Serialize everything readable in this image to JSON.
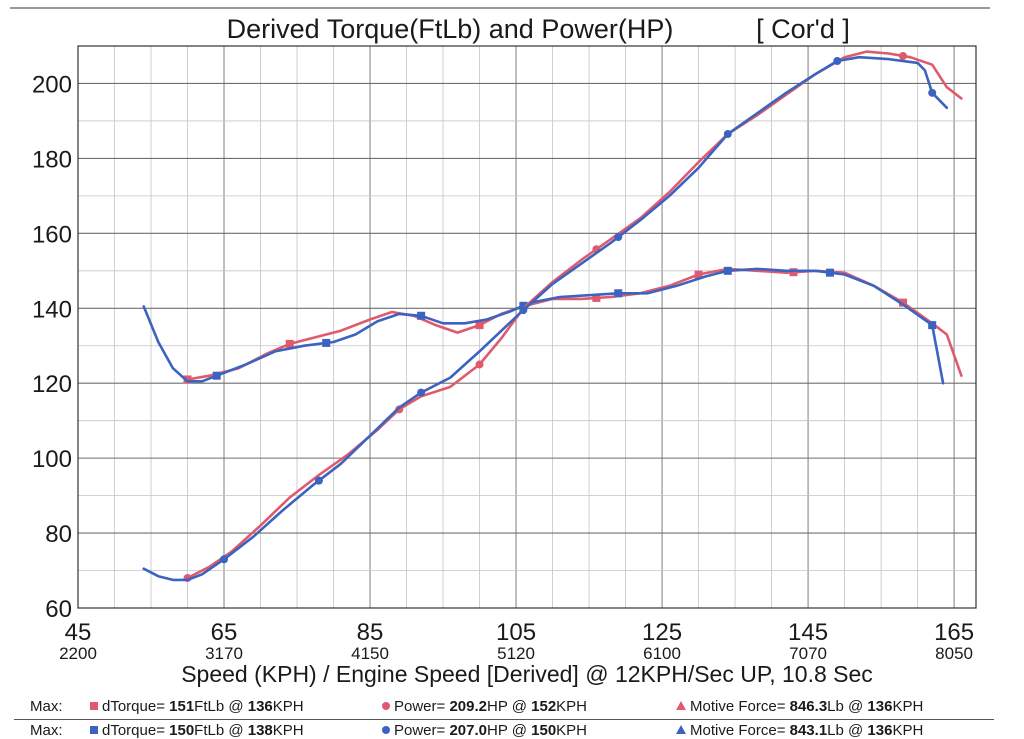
{
  "chart_data": {
    "type": "line",
    "title": "Derived Torque(FtLb) and Power(HP)",
    "title_tag": "[ Cor'd ]",
    "xlabel": "Speed (KPH) / Engine Speed [Derived] @ 12KPH/Sec UP, 10.8 Sec",
    "ylabel": "",
    "xlim": [
      45,
      168
    ],
    "ylim": [
      60,
      210
    ],
    "x_ticks": [
      45,
      65,
      85,
      105,
      125,
      145,
      165
    ],
    "x_ticks_rpm": [
      "2200",
      "3170",
      "4150",
      "5120",
      "6100",
      "7070",
      "8050"
    ],
    "y_ticks": [
      60,
      80,
      100,
      120,
      140,
      160,
      180,
      200
    ],
    "grid": true,
    "legend": "bottom",
    "colors": {
      "red": "#e05a6e",
      "blue": "#3c63c0"
    },
    "series": [
      {
        "name": "dTorque",
        "run": "red",
        "marker": "square",
        "points": [
          [
            60,
            121
          ],
          [
            63,
            122
          ],
          [
            67,
            124
          ],
          [
            71,
            128
          ],
          [
            74,
            130.5
          ],
          [
            78,
            132.5
          ],
          [
            81,
            134
          ],
          [
            85,
            137
          ],
          [
            88,
            139
          ],
          [
            91,
            138
          ],
          [
            94,
            135.5
          ],
          [
            97,
            133.5
          ],
          [
            100,
            135.5
          ],
          [
            103,
            138.5
          ],
          [
            106,
            140.5
          ],
          [
            110,
            142.5
          ],
          [
            114,
            142.5
          ],
          [
            118,
            143
          ],
          [
            122,
            144
          ],
          [
            126,
            146
          ],
          [
            130,
            149
          ],
          [
            134,
            150.5
          ],
          [
            138,
            150
          ],
          [
            142,
            149.5
          ],
          [
            146,
            150
          ],
          [
            150,
            149.5
          ],
          [
            154,
            146
          ],
          [
            158,
            141.5
          ],
          [
            162,
            136
          ],
          [
            164,
            133
          ],
          [
            166,
            122
          ]
        ],
        "marker_x": [
          60,
          74,
          100,
          116,
          130,
          143,
          158
        ]
      },
      {
        "name": "dTorque",
        "run": "blue",
        "marker": "square",
        "points": [
          [
            54,
            140.5
          ],
          [
            56,
            131
          ],
          [
            58,
            124
          ],
          [
            60,
            120.5
          ],
          [
            62,
            120.5
          ],
          [
            64,
            122
          ],
          [
            68,
            125
          ],
          [
            72,
            128.5
          ],
          [
            76,
            130
          ],
          [
            80,
            131
          ],
          [
            83,
            133
          ],
          [
            86,
            136.5
          ],
          [
            89,
            138.5
          ],
          [
            92,
            138
          ],
          [
            95,
            136
          ],
          [
            98,
            136
          ],
          [
            101,
            137
          ],
          [
            104,
            139
          ],
          [
            107,
            141.5
          ],
          [
            111,
            143
          ],
          [
            115,
            143.5
          ],
          [
            119,
            144
          ],
          [
            123,
            144
          ],
          [
            127,
            146
          ],
          [
            131,
            148.5
          ],
          [
            134,
            150
          ],
          [
            138,
            150.5
          ],
          [
            142,
            150
          ],
          [
            146,
            150
          ],
          [
            150,
            149
          ],
          [
            154,
            146
          ],
          [
            158,
            141
          ],
          [
            162,
            135.5
          ],
          [
            163.5,
            120
          ]
        ],
        "marker_x": [
          64,
          79,
          92,
          106,
          119,
          134,
          148,
          162
        ]
      },
      {
        "name": "Power",
        "run": "red",
        "marker": "circle",
        "points": [
          [
            60,
            68
          ],
          [
            63,
            71
          ],
          [
            66,
            75
          ],
          [
            70,
            82
          ],
          [
            74,
            89.5
          ],
          [
            78,
            95.5
          ],
          [
            82,
            101
          ],
          [
            86,
            107.5
          ],
          [
            89,
            113
          ],
          [
            92,
            116.5
          ],
          [
            96,
            119
          ],
          [
            100,
            125
          ],
          [
            103,
            132
          ],
          [
            106,
            140
          ],
          [
            110,
            147
          ],
          [
            114,
            153
          ],
          [
            118,
            158.5
          ],
          [
            122,
            164
          ],
          [
            126,
            171
          ],
          [
            130,
            179
          ],
          [
            134,
            186.5
          ],
          [
            138,
            191.5
          ],
          [
            142,
            197
          ],
          [
            146,
            202.5
          ],
          [
            150,
            207
          ],
          [
            153,
            208.5
          ],
          [
            156,
            208
          ],
          [
            159,
            207
          ],
          [
            162,
            205
          ],
          [
            164,
            199
          ],
          [
            166,
            196
          ]
        ],
        "marker_x": [
          60,
          89,
          100,
          116,
          158
        ]
      },
      {
        "name": "Power",
        "run": "blue",
        "marker": "circle",
        "points": [
          [
            54,
            70.5
          ],
          [
            56,
            68.5
          ],
          [
            58,
            67.5
          ],
          [
            60,
            67.5
          ],
          [
            62,
            69
          ],
          [
            65,
            73
          ],
          [
            69,
            79
          ],
          [
            73,
            86
          ],
          [
            77,
            92.5
          ],
          [
            81,
            98.5
          ],
          [
            85,
            106
          ],
          [
            89,
            113.5
          ],
          [
            92,
            117.5
          ],
          [
            96,
            121.5
          ],
          [
            100,
            128.5
          ],
          [
            103,
            134
          ],
          [
            106,
            139.5
          ],
          [
            110,
            146.5
          ],
          [
            114,
            152
          ],
          [
            118,
            157.5
          ],
          [
            122,
            163.5
          ],
          [
            126,
            170
          ],
          [
            130,
            177.5
          ],
          [
            134,
            186.5
          ],
          [
            138,
            192
          ],
          [
            142,
            197.5
          ],
          [
            146,
            202.5
          ],
          [
            149,
            206
          ],
          [
            152,
            207
          ],
          [
            156,
            206.5
          ],
          [
            160,
            205.5
          ],
          [
            161,
            203.5
          ],
          [
            162,
            197.5
          ],
          [
            164,
            193.5
          ]
        ],
        "marker_x": [
          65,
          78,
          92,
          106,
          119,
          134,
          149,
          162
        ]
      }
    ]
  },
  "legend_rows": [
    {
      "prefix": "Max:",
      "color": "#e05a6e",
      "torque": {
        "label": "dTorque= ",
        "value": "151",
        "unit": "FtLb @ ",
        "speed": "136",
        "speed_unit": "KPH"
      },
      "power": {
        "label": "Power= ",
        "value": "209.2",
        "unit": "HP @ ",
        "speed": "152",
        "speed_unit": "KPH"
      },
      "force": {
        "label": "Motive Force= ",
        "value": "846.3",
        "unit": "Lb @ ",
        "speed": "136",
        "speed_unit": "KPH"
      }
    },
    {
      "prefix": "Max:",
      "color": "#3c63c0",
      "torque": {
        "label": "dTorque= ",
        "value": "150",
        "unit": "FtLb @ ",
        "speed": "138",
        "speed_unit": "KPH"
      },
      "power": {
        "label": "Power= ",
        "value": "207.0",
        "unit": "HP @ ",
        "speed": "150",
        "speed_unit": "KPH"
      },
      "force": {
        "label": "Motive Force= ",
        "value": "843.1",
        "unit": "Lb @ ",
        "speed": "136",
        "speed_unit": "KPH"
      }
    }
  ]
}
